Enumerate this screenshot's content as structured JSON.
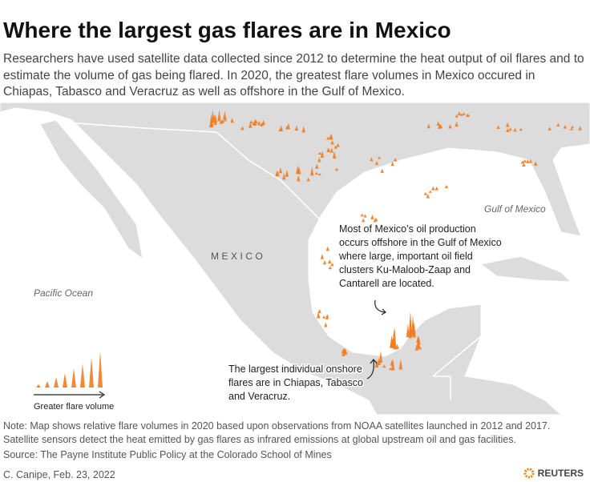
{
  "header": {
    "title": "Where the largest gas flares are in Mexico",
    "subtitle": "Researchers have used satellite data collected since 2012 to determine the  heat output of oil flares and to estimate the volume of gas being flared. In 2020, the greatest flare volumes in Mexico occured in Chiapas, Tabasco and Veracruz as well as offshore in the Gulf of Mexico."
  },
  "map": {
    "labels": {
      "gulf": "Gulf of Mexico",
      "pacific": "Pacific Ocean",
      "country": "MEXICO"
    },
    "annotations": [
      {
        "lines": [
          "Most of Mexico’s oil production",
          "occurs offshore in the Gulf of Mexico",
          "where large, important oil field",
          "clusters Ku-Maloob-Zaap and",
          "Cantarell are located."
        ]
      },
      {
        "lines": [
          "The largest individual onshore",
          "flares are in Chiapas, Tabasco",
          "and Veracruz."
        ]
      }
    ],
    "legend": "Greater flare volume"
  },
  "footer": {
    "note": "Note: Map shows relative flare volumes in 2020 based upon observations from NOAA satellites launched in 2012 and 2017. Satellite sensors detect the heat emitted by gas flares as infrared emissions at global upstream oil and gas facilities.",
    "source": "Source: The Payne Institute Public Policy at the Colorado School of Mines",
    "credit": "C. Canipe, Feb. 23, 2022",
    "logo": "REUTERS"
  }
}
